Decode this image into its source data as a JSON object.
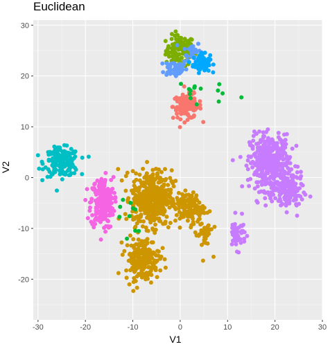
{
  "chart_data": {
    "type": "scatter",
    "title": "Euclidean",
    "xlabel": "V1",
    "ylabel": "V2",
    "xlim": [
      -31,
      30
    ],
    "ylim": [
      -28,
      31
    ],
    "xticks": [
      -30,
      -20,
      -10,
      0,
      10,
      20,
      30
    ],
    "yticks": [
      30,
      20,
      10,
      0,
      -10,
      -20
    ],
    "grid": true,
    "legend": "none",
    "background": "#ebebeb",
    "series": [
      {
        "color": "#7cae00",
        "clusters": [
          {
            "center": [
              0,
              25
            ],
            "spread": [
              2.5,
              2.5
            ],
            "count": 110
          }
        ]
      },
      {
        "color": "#619cff",
        "clusters": [
          {
            "center": [
              -1,
              21.5
            ],
            "spread": [
              2,
              1.5
            ],
            "count": 50
          },
          {
            "center": [
              2.5,
              25
            ],
            "spread": [
              1.5,
              1.5
            ],
            "count": 30
          }
        ]
      },
      {
        "color": "#00a9ff",
        "clusters": [
          {
            "center": [
              4.5,
              22.5
            ],
            "spread": [
              1.5,
              1.5
            ],
            "count": 70
          }
        ]
      },
      {
        "color": "#f8766d",
        "clusters": [
          {
            "center": [
              1.5,
              14
            ],
            "spread": [
              2.5,
              2.0
            ],
            "count": 120
          }
        ]
      },
      {
        "color": "#00bfc4",
        "clusters": [
          {
            "center": [
              -25,
              3
            ],
            "spread": [
              3.0,
              2.3
            ],
            "count": 180
          }
        ]
      },
      {
        "color": "#f564e3",
        "clusters": [
          {
            "center": [
              -16.5,
              -5
            ],
            "spread": [
              2.0,
              4.2
            ],
            "count": 230
          }
        ]
      },
      {
        "color": "#c77cff",
        "clusters": [
          {
            "center": [
              19,
              3
            ],
            "spread": [
              3.5,
              4.5
            ],
            "count": 420
          },
          {
            "center": [
              12,
              -11
            ],
            "spread": [
              1.5,
              2.5
            ],
            "count": 50
          },
          {
            "center": [
              23,
              -3
            ],
            "spread": [
              2.5,
              3.0
            ],
            "count": 120
          }
        ]
      },
      {
        "color": "#cd9600",
        "clusters": [
          {
            "center": [
              -6,
              -4
            ],
            "spread": [
              3.5,
              4.5
            ],
            "count": 450
          },
          {
            "center": [
              -8,
              -16
            ],
            "spread": [
              3.0,
              3.5
            ],
            "count": 200
          },
          {
            "center": [
              2,
              -6
            ],
            "spread": [
              2.5,
              2.5
            ],
            "count": 120
          },
          {
            "center": [
              5,
              -11
            ],
            "spread": [
              1.5,
              3.0
            ],
            "count": 40
          }
        ]
      },
      {
        "color": "#00ba38",
        "clusters": [
          {
            "center": [
              3,
              17
            ],
            "spread": [
              5.0,
              2.0
            ],
            "count": 14
          },
          {
            "center": [
              -12,
              -8
            ],
            "spread": [
              4.0,
              5.0
            ],
            "count": 10
          }
        ]
      }
    ]
  }
}
